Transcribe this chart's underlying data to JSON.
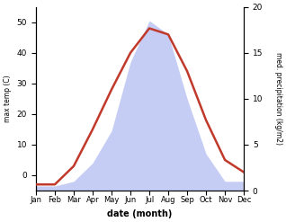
{
  "months": [
    "Jan",
    "Feb",
    "Mar",
    "Apr",
    "May",
    "Jun",
    "Jul",
    "Aug",
    "Sep",
    "Oct",
    "Nov",
    "Dec"
  ],
  "month_positions": [
    1,
    2,
    3,
    4,
    5,
    6,
    7,
    8,
    9,
    10,
    11,
    12
  ],
  "temperature": [
    -3,
    -3,
    3,
    15,
    28,
    40,
    48,
    46,
    34,
    18,
    5,
    1
  ],
  "precipitation": [
    0.5,
    0.5,
    1.0,
    3.0,
    6.5,
    14.0,
    18.5,
    17.0,
    10.0,
    4.0,
    1.0,
    1.0
  ],
  "temp_color": "#c0392b",
  "precip_fill_color": "#c5cdf5",
  "temp_ylim": [
    -5,
    55
  ],
  "precip_ylim": [
    0,
    20
  ],
  "temp_yticks": [
    0,
    10,
    20,
    30,
    40,
    50
  ],
  "precip_yticks": [
    0,
    5,
    10,
    15,
    20
  ],
  "xlabel": "date (month)",
  "ylabel_left": "max temp (C)",
  "ylabel_right": "med. precipitation (kg/m2)",
  "background_color": "#ffffff",
  "fig_width": 3.18,
  "fig_height": 2.47,
  "dpi": 100
}
